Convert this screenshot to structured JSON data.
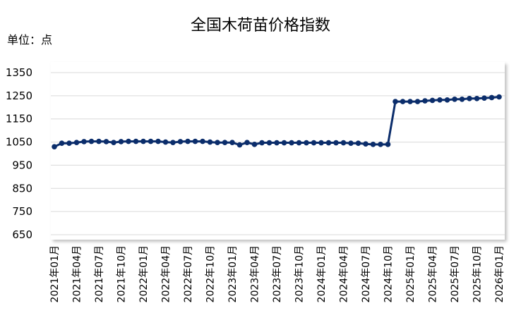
{
  "chart_data": {
    "type": "line",
    "title": "全国木荷苗价格指数",
    "unit_label": "单位：点",
    "categories": [
      "2021年01月",
      null,
      null,
      "2021年04月",
      null,
      null,
      "2021年07月",
      null,
      null,
      "2021年10月",
      null,
      null,
      "2022年01月",
      null,
      null,
      "2022年04月",
      null,
      null,
      "2022年07月",
      null,
      null,
      "2022年10月",
      null,
      null,
      "2023年01月",
      null,
      null,
      "2023年04月",
      null,
      null,
      "2023年07月",
      null,
      null,
      "2023年10月",
      null,
      null,
      "2024年01月",
      null,
      null,
      "2024年04月",
      null,
      null,
      "2024年07月",
      null,
      null,
      "2024年10月",
      null,
      null,
      "2025年01月",
      null,
      null,
      "2025年04月",
      null,
      null,
      "2025年07月",
      null,
      null,
      "2025年10月",
      null,
      null,
      "2026年01月"
    ],
    "series": [
      {
        "name": "全国木荷苗价格指数",
        "color": "#0b2d6b",
        "values": [
          1030,
          1045,
          1045,
          1048,
          1052,
          1053,
          1053,
          1052,
          1048,
          1052,
          1053,
          1053,
          1053,
          1053,
          1053,
          1050,
          1048,
          1052,
          1053,
          1053,
          1053,
          1050,
          1048,
          1048,
          1048,
          1038,
          1048,
          1040,
          1047,
          1047,
          1047,
          1047,
          1047,
          1047,
          1047,
          1047,
          1047,
          1047,
          1047,
          1047,
          1045,
          1045,
          1042,
          1040,
          1040,
          1040,
          1225,
          1225,
          1225,
          1225,
          1228,
          1230,
          1232,
          1232,
          1235,
          1235,
          1238,
          1238,
          1240,
          1242,
          1245
        ]
      }
    ],
    "ylim": [
      650,
      1350
    ],
    "yticks": [
      650,
      750,
      850,
      950,
      1050,
      1150,
      1250,
      1350
    ],
    "grid": true
  }
}
